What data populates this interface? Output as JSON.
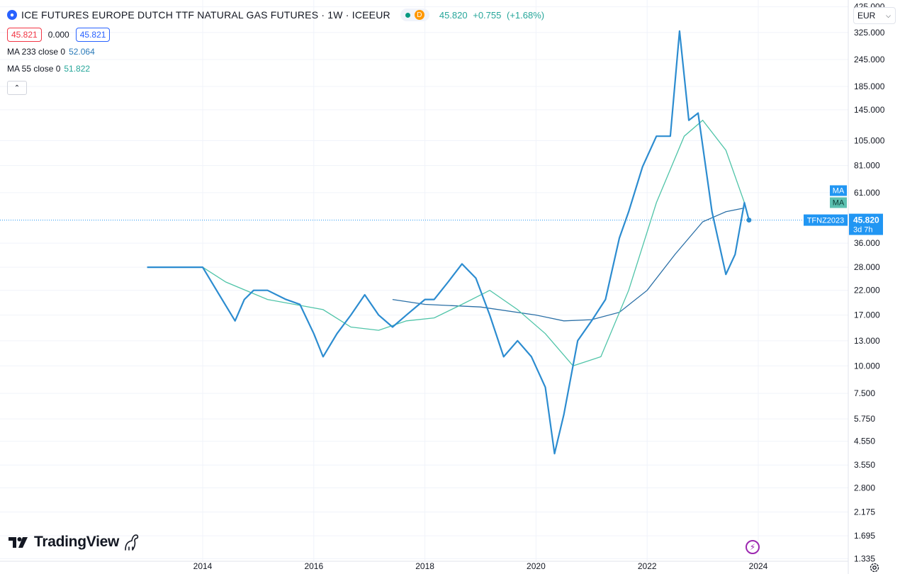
{
  "header": {
    "title": "ICE FUTURES EUROPE DUTCH TTF NATURAL GAS FUTURES · 1W · ICEEUR",
    "status_badge": "D",
    "last_price": "45.820",
    "change": "+0.755",
    "change_pct": "(+1.68%)",
    "bid": "45.821",
    "spread": "0.000",
    "ask": "45.821"
  },
  "indicators": [
    {
      "label": "MA 233 close 0",
      "value": "52.064",
      "color": "#2a7ab8"
    },
    {
      "label": "MA 55 close 0",
      "value": "51.822",
      "color": "#26a69a"
    }
  ],
  "currency": "EUR",
  "price_scale": {
    "ticks": [
      "425.000",
      "325.000",
      "245.000",
      "185.000",
      "145.000",
      "105.000",
      "81.000",
      "61.000",
      "36.000",
      "28.000",
      "22.000",
      "17.000",
      "13.000",
      "10.000",
      "7.500",
      "5.750",
      "4.550",
      "3.550",
      "2.800",
      "2.175",
      "1.695",
      "1.335"
    ],
    "last_label": "45.820",
    "countdown": "3d 7h",
    "symbol_label": "TFNZ2023",
    "ma_labels": [
      "MA",
      "MA"
    ]
  },
  "time_scale": {
    "ticks": [
      "2014",
      "2016",
      "2018",
      "2020",
      "2022",
      "2024"
    ]
  },
  "logo": "TradingView",
  "colors": {
    "price_line": "#2c8cd0",
    "ma233": "#2a6fa6",
    "ma55": "#4fc4a8",
    "last_price_bg": "#2196f3"
  },
  "chart_data": {
    "type": "line",
    "x_axis": "date",
    "y_scale": "log",
    "ylim": [
      1.3,
      430
    ],
    "series": [
      {
        "name": "TFNZ2023",
        "x": [
          "2013-01",
          "2013-09",
          "2014-01",
          "2014-04",
          "2014-08",
          "2014-10",
          "2014-12",
          "2015-03",
          "2015-07",
          "2015-10",
          "2016-01",
          "2016-03",
          "2016-06",
          "2016-09",
          "2016-12",
          "2017-03",
          "2017-06",
          "2017-09",
          "2018-01",
          "2018-03",
          "2018-06",
          "2018-09",
          "2018-12",
          "2019-03",
          "2019-06",
          "2019-09",
          "2019-12",
          "2020-03",
          "2020-05",
          "2020-07",
          "2020-10",
          "2021-01",
          "2021-04",
          "2021-07",
          "2021-09",
          "2021-12",
          "2022-03",
          "2022-06",
          "2022-08",
          "2022-10",
          "2022-12",
          "2023-03",
          "2023-06",
          "2023-08",
          "2023-10",
          "2023-11"
        ],
        "values": [
          28,
          28,
          28,
          22,
          16,
          20,
          22,
          22,
          20,
          19,
          14,
          11,
          14,
          17,
          21,
          17,
          15,
          17,
          20,
          20,
          24,
          29,
          25,
          17,
          11,
          13,
          11,
          8,
          4,
          6,
          13,
          16,
          20,
          38,
          50,
          80,
          110,
          110,
          330,
          130,
          140,
          50,
          26,
          32,
          55,
          45.82
        ]
      },
      {
        "name": "MA 55",
        "x": [
          "2014-01",
          "2014-06",
          "2015-03",
          "2016-03",
          "2016-09",
          "2017-03",
          "2017-09",
          "2018-03",
          "2018-09",
          "2019-03",
          "2019-09",
          "2020-03",
          "2020-09",
          "2021-03",
          "2021-09",
          "2022-03",
          "2022-09",
          "2023-01",
          "2023-06",
          "2023-10"
        ],
        "values": [
          28,
          24,
          20,
          18,
          15,
          14.5,
          16,
          16.5,
          19,
          22,
          18,
          14,
          10,
          11,
          22,
          55,
          110,
          130,
          95,
          55
        ]
      },
      {
        "name": "MA 233",
        "x": [
          "2017-06",
          "2018-01",
          "2019-01",
          "2020-01",
          "2020-07",
          "2021-01",
          "2021-07",
          "2022-01",
          "2022-07",
          "2023-01",
          "2023-06",
          "2023-10"
        ],
        "values": [
          20,
          19,
          18.5,
          17,
          16,
          16.2,
          17.5,
          22,
          32,
          45,
          50,
          52
        ]
      }
    ]
  }
}
